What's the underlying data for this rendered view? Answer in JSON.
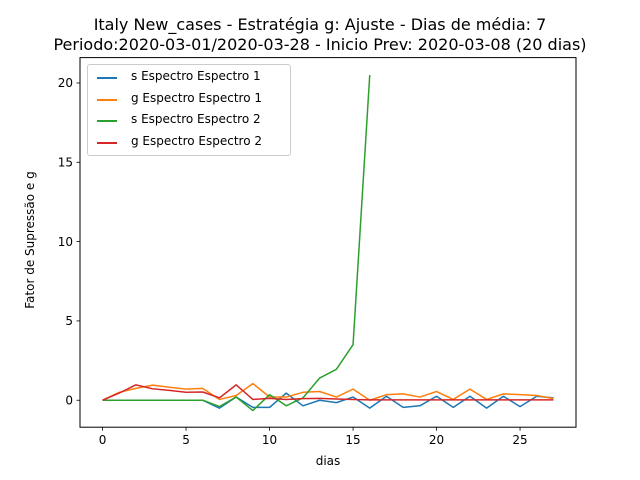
{
  "chart_data": {
    "type": "line",
    "title_line1": "Italy New_cases - Estratégia g: Ajuste - Dias de média: 7",
    "title_line2": "Periodo:2020-03-01/2020-03-28 - Inicio Prev: 2020-03-08 (20 dias)",
    "xlabel": "dias",
    "ylabel": "Fator de Supressão e g",
    "xlim": [
      -1.35,
      28.35
    ],
    "ylim": [
      -1.7,
      21.6
    ],
    "xticks": [
      0,
      5,
      10,
      15,
      20,
      25
    ],
    "yticks": [
      0,
      5,
      10,
      15,
      20
    ],
    "grid": false,
    "legend_position": "top-left",
    "series": [
      {
        "name": "s Espectro Espectro 1",
        "color": "#1f77b4",
        "x": [
          0,
          1,
          2,
          3,
          4,
          5,
          6,
          7,
          8,
          9,
          10,
          11,
          12,
          13,
          14,
          15,
          16,
          17,
          18,
          19,
          20,
          21,
          22,
          23,
          24,
          25,
          26,
          27
        ],
        "y": [
          0,
          0,
          0,
          0,
          0,
          0,
          0,
          -0.5,
          0.2,
          -0.45,
          -0.45,
          0.45,
          -0.35,
          0.0,
          -0.15,
          0.2,
          -0.5,
          0.25,
          -0.45,
          -0.35,
          0.25,
          -0.45,
          0.25,
          -0.5,
          0.25,
          -0.4,
          0.25,
          0.15
        ]
      },
      {
        "name": "g Espectro Espectro 1",
        "color": "#ff7f0e",
        "x": [
          0,
          1,
          2,
          3,
          4,
          5,
          6,
          7,
          8,
          9,
          10,
          11,
          12,
          13,
          14,
          15,
          16,
          17,
          18,
          19,
          20,
          21,
          22,
          23,
          24,
          25,
          26,
          27
        ],
        "y": [
          0,
          0.5,
          0.75,
          0.95,
          0.82,
          0.7,
          0.75,
          0.05,
          0.3,
          1.05,
          0.2,
          0.2,
          0.5,
          0.55,
          0.2,
          0.7,
          0.0,
          0.35,
          0.4,
          0.2,
          0.55,
          0.05,
          0.7,
          0.05,
          0.4,
          0.35,
          0.3,
          0.1
        ]
      },
      {
        "name": "s Espectro Espectro 2",
        "color": "#2ca02c",
        "x": [
          0,
          1,
          2,
          3,
          4,
          5,
          6,
          7,
          8,
          9,
          10,
          11,
          12,
          13,
          14,
          15,
          16
        ],
        "y": [
          0,
          0,
          0,
          0,
          0,
          0,
          0,
          -0.4,
          0.2,
          -0.65,
          0.35,
          -0.35,
          0.15,
          1.4,
          1.95,
          3.5,
          20.5
        ]
      },
      {
        "name": "g Espectro Espectro 2",
        "color": "#d62728",
        "x": [
          0,
          1,
          2,
          3,
          4,
          5,
          6,
          7,
          8,
          9,
          10,
          11,
          12,
          13,
          14,
          15,
          16,
          17,
          18,
          19,
          20,
          21,
          22,
          23,
          24,
          25,
          26,
          27
        ],
        "y": [
          0,
          0.45,
          0.97,
          0.72,
          0.62,
          0.5,
          0.52,
          0.15,
          0.97,
          0.05,
          0.12,
          0.05,
          0.1,
          0.12,
          0.08,
          0.05,
          0.02,
          0.02,
          0.02,
          0.02,
          0.02,
          0.02,
          0.02,
          0.02,
          0.02,
          0.02,
          0.02,
          0.02
        ]
      }
    ]
  }
}
